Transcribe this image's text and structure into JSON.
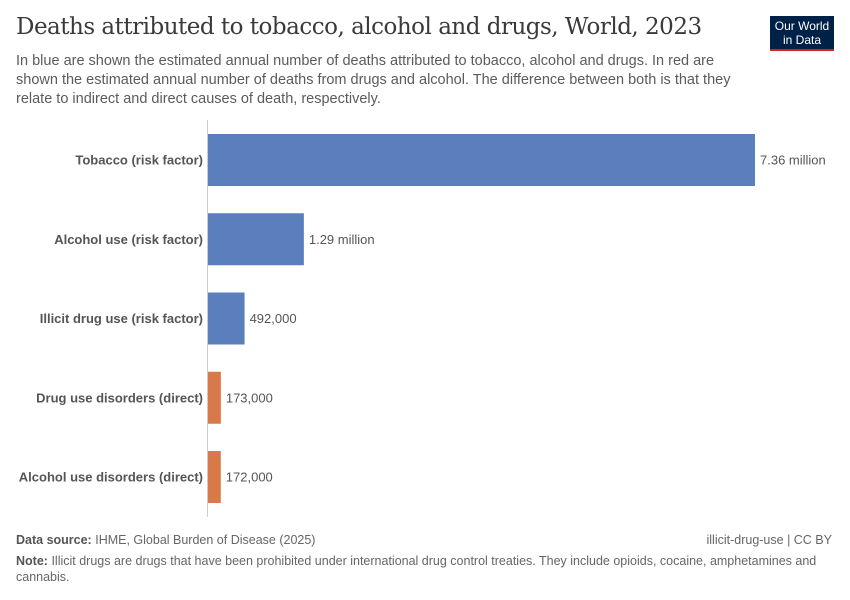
{
  "title": "Deaths attributed to tobacco, alcohol and drugs, World, 2023",
  "subtitle": "In blue are shown the estimated annual number of deaths attributed to tobacco, alcohol and drugs. In red are shown the estimated annual number of deaths from drugs and alcohol. The difference between both is that they relate to indirect and direct causes of death, respectively.",
  "logo": "Our World in Data",
  "footer": {
    "source_label": "Data source:",
    "source": "IHME, Global Burden of Disease (2025)",
    "license": "illicit-drug-use | CC BY",
    "note_label": "Note:",
    "note": "Illicit drugs are drugs that have been prohibited under international drug control treaties. They include opioids, cocaine, amphetamines and cannabis."
  },
  "chart_data": {
    "type": "bar",
    "orientation": "horizontal",
    "categories": [
      "Tobacco (risk factor)",
      "Alcohol use (risk factor)",
      "Illicit drug use (risk factor)",
      "Drug use disorders (direct)",
      "Alcohol use disorders (direct)"
    ],
    "values": [
      7360000,
      1290000,
      492000,
      173000,
      172000
    ],
    "data_labels": [
      "7.36 million",
      "1.29 million",
      "492,000",
      "173,000",
      "172,000"
    ],
    "colors": [
      "#5b7fbc",
      "#5b7fbc",
      "#5b7fbc",
      "#d9794a",
      "#d9794a"
    ],
    "xlim": [
      0,
      7360000
    ],
    "grid": false
  }
}
